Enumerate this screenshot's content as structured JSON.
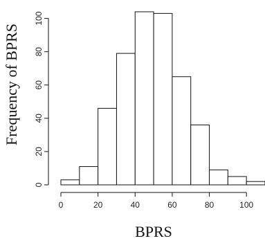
{
  "chart_data": {
    "type": "bar",
    "subtype": "histogram",
    "title": "",
    "xlabel": "BPRS",
    "ylabel": "Frequency of BPRS",
    "bin_edges": [
      0,
      10,
      20,
      30,
      40,
      50,
      60,
      70,
      80,
      90,
      100,
      110
    ],
    "values": [
      3,
      11,
      46,
      79,
      104,
      103,
      65,
      36,
      9,
      5,
      2
    ],
    "x_ticks": [
      0,
      20,
      40,
      60,
      80,
      100
    ],
    "y_ticks": [
      0,
      20,
      40,
      60,
      80,
      100
    ],
    "xlim": [
      0,
      110
    ],
    "ylim": [
      0,
      104
    ],
    "grid": false
  }
}
